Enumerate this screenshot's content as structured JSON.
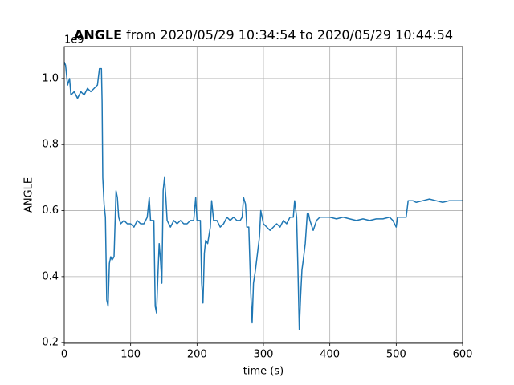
{
  "chart_data": {
    "type": "line",
    "title_bold": "ANGLE",
    "title": "from 2020/05/29 10:34:54 to 2020/05/29 10:44:54",
    "x_label": "time (s)",
    "y_label": "ANGLE",
    "y_offset_label": "1e9",
    "xlim": [
      0,
      600
    ],
    "xticks": [
      0,
      100,
      200,
      300,
      400,
      500,
      600
    ],
    "ylim": [
      0.198,
      1.097
    ],
    "yticks": [
      0.2,
      0.4,
      0.6,
      0.8,
      {
        "value": 1.0,
        "label": "1.0"
      }
    ],
    "grid": true,
    "series": [
      {
        "name": "ANGLE",
        "color": "#1f77b4",
        "x": [
          0,
          2,
          5,
          8,
          10,
          15,
          20,
          25,
          30,
          35,
          40,
          45,
          50,
          53,
          56,
          57,
          58,
          60,
          62,
          64,
          66,
          68,
          70,
          72,
          75,
          78,
          80,
          82,
          85,
          90,
          95,
          100,
          105,
          110,
          115,
          120,
          125,
          128,
          130,
          135,
          137,
          139,
          141,
          143,
          145,
          147,
          149,
          151,
          153,
          155,
          160,
          165,
          170,
          175,
          180,
          185,
          190,
          195,
          198,
          200,
          205,
          207,
          209,
          211,
          213,
          216,
          220,
          222,
          225,
          230,
          235,
          240,
          245,
          250,
          255,
          260,
          265,
          268,
          270,
          273,
          275,
          278,
          281,
          283,
          285,
          288,
          291,
          294,
          296,
          300,
          305,
          310,
          315,
          320,
          325,
          330,
          335,
          340,
          345,
          347,
          350,
          352,
          354,
          356,
          358,
          360,
          363,
          366,
          368,
          370,
          375,
          380,
          385,
          390,
          400,
          410,
          420,
          430,
          440,
          450,
          460,
          470,
          480,
          490,
          495,
          500,
          502,
          510,
          515,
          518,
          525,
          530,
          540,
          550,
          560,
          570,
          580,
          590,
          600
        ],
        "values": [
          1.05,
          1.04,
          0.98,
          1.0,
          0.95,
          0.96,
          0.94,
          0.96,
          0.95,
          0.97,
          0.96,
          0.97,
          0.98,
          1.03,
          1.03,
          0.93,
          0.7,
          0.62,
          0.58,
          0.33,
          0.31,
          0.44,
          0.46,
          0.45,
          0.46,
          0.66,
          0.64,
          0.58,
          0.56,
          0.57,
          0.56,
          0.56,
          0.55,
          0.57,
          0.56,
          0.56,
          0.58,
          0.64,
          0.57,
          0.57,
          0.31,
          0.29,
          0.4,
          0.5,
          0.45,
          0.38,
          0.66,
          0.7,
          0.64,
          0.57,
          0.55,
          0.57,
          0.56,
          0.57,
          0.56,
          0.56,
          0.57,
          0.57,
          0.64,
          0.57,
          0.57,
          0.38,
          0.32,
          0.47,
          0.51,
          0.5,
          0.55,
          0.63,
          0.57,
          0.57,
          0.55,
          0.56,
          0.58,
          0.57,
          0.58,
          0.57,
          0.57,
          0.58,
          0.64,
          0.62,
          0.55,
          0.55,
          0.35,
          0.26,
          0.38,
          0.42,
          0.47,
          0.52,
          0.6,
          0.56,
          0.55,
          0.54,
          0.55,
          0.56,
          0.55,
          0.57,
          0.56,
          0.58,
          0.58,
          0.63,
          0.58,
          0.42,
          0.24,
          0.34,
          0.42,
          0.45,
          0.5,
          0.59,
          0.59,
          0.57,
          0.54,
          0.57,
          0.58,
          0.58,
          0.58,
          0.575,
          0.58,
          0.575,
          0.57,
          0.575,
          0.57,
          0.575,
          0.575,
          0.58,
          0.57,
          0.55,
          0.58,
          0.58,
          0.58,
          0.63,
          0.63,
          0.625,
          0.63,
          0.635,
          0.63,
          0.625,
          0.63,
          0.63,
          0.63
        ]
      }
    ]
  }
}
